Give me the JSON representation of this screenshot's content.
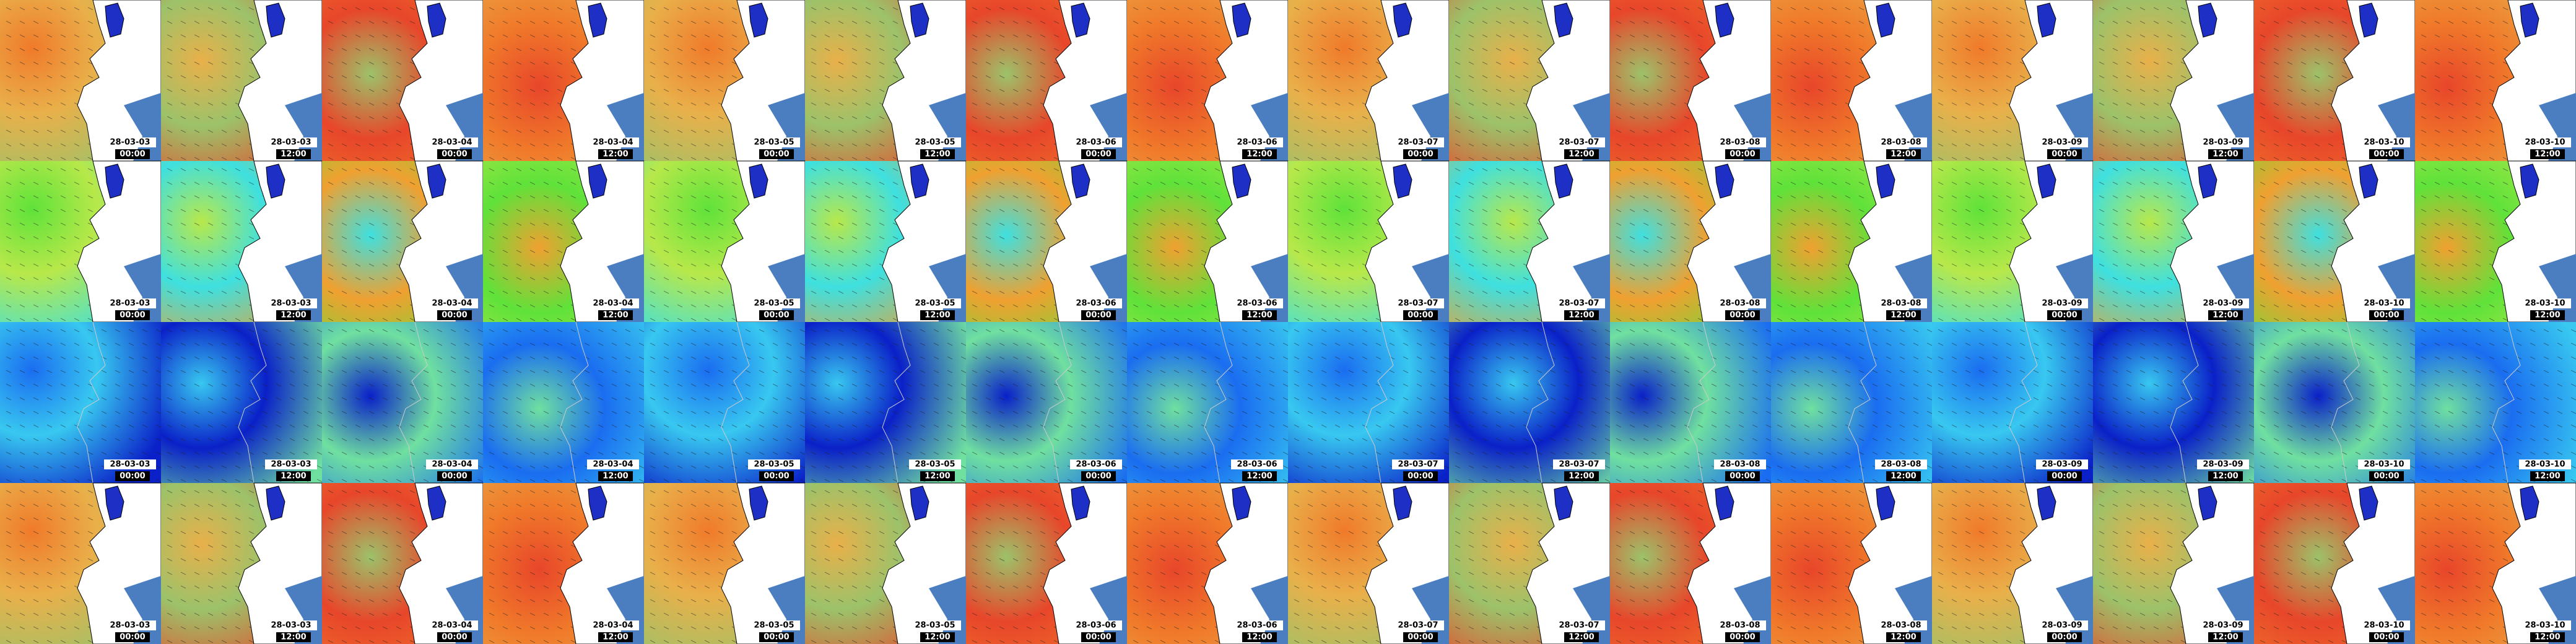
{
  "rows": [
    {
      "labels": [
        [
          "28-03-03",
          "00:00"
        ],
        [
          "28-03-03",
          "12:00"
        ],
        [
          "28-03-04",
          "00:00"
        ],
        [
          "28-03-04",
          "12:00"
        ],
        [
          "28-03-05",
          "00:00"
        ],
        [
          "28-03-05",
          "12:00"
        ],
        [
          "28-03-06",
          "00:00"
        ],
        [
          "28-03-06",
          "12:00"
        ],
        [
          "28-03-07",
          "00:00"
        ],
        [
          "28-03-07",
          "12:00"
        ],
        [
          "28-03-08",
          "00:00"
        ],
        [
          "28-03-08",
          "12:00"
        ],
        [
          "28-03-09",
          "00:00"
        ],
        [
          "28-03-09",
          "12:00"
        ],
        [
          "28-03-10",
          "00:00"
        ],
        [
          "28-03-10",
          "12:00"
        ]
      ]
    },
    {
      "labels": [
        [
          "28-03-03",
          "00:00"
        ],
        [
          "28-03-03",
          "12:00"
        ],
        [
          "28-03-04",
          "00:00"
        ],
        [
          "28-03-04",
          "12:00"
        ],
        [
          "28-03-05",
          "00:00"
        ],
        [
          "28-03-05",
          "12:00"
        ],
        [
          "28-03-06",
          "00:00"
        ],
        [
          "28-03-06",
          "12:00"
        ],
        [
          "28-03-07",
          "00:00"
        ],
        [
          "28-03-07",
          "12:00"
        ],
        [
          "28-03-08",
          "00:00"
        ],
        [
          "28-03-08",
          "12:00"
        ],
        [
          "28-03-09",
          "00:00"
        ],
        [
          "28-03-09",
          "12:00"
        ],
        [
          "28-03-10",
          "00:00"
        ],
        [
          "28-03-10",
          "12:00"
        ]
      ]
    },
    {
      "labels": [
        [
          "28-03-03",
          "00:00"
        ],
        [
          "28-03-03",
          "12:00"
        ],
        [
          "28-03-04",
          "00:00"
        ],
        [
          "28-03-04",
          "12:00"
        ],
        [
          "28-03-05",
          "00:00"
        ],
        [
          "28-03-05",
          "12:00"
        ],
        [
          "28-03-06",
          "00:00"
        ],
        [
          "28-03-06",
          "12:00"
        ],
        [
          "28-03-07",
          "00:00"
        ],
        [
          "28-03-07",
          "12:00"
        ],
        [
          "28-03-08",
          "00:00"
        ],
        [
          "28-03-08",
          "12:00"
        ],
        [
          "28-03-09",
          "00:00"
        ],
        [
          "28-03-09",
          "12:00"
        ],
        [
          "28-03-10",
          "00:00"
        ],
        [
          "28-03-10",
          "12:00"
        ]
      ]
    },
    {
      "labels": [
        [
          "28-03-03",
          "00:00"
        ],
        [
          "28-03-03",
          "12:00"
        ],
        [
          "28-03-04",
          "00:00"
        ],
        [
          "28-03-04",
          "12:00"
        ],
        [
          "28-03-05",
          "00:00"
        ],
        [
          "28-03-05",
          "12:00"
        ],
        [
          "28-03-06",
          "00:00"
        ],
        [
          "28-03-06",
          "12:00"
        ],
        [
          "28-03-07",
          "00:00"
        ],
        [
          "28-03-07",
          "12:00"
        ],
        [
          "28-03-08",
          "00:00"
        ],
        [
          "28-03-08",
          "12:00"
        ],
        [
          "28-03-09",
          "00:00"
        ],
        [
          "28-03-09",
          "12:00"
        ],
        [
          "28-03-10",
          "00:00"
        ],
        [
          "28-03-10",
          "12:00"
        ]
      ]
    }
  ]
}
